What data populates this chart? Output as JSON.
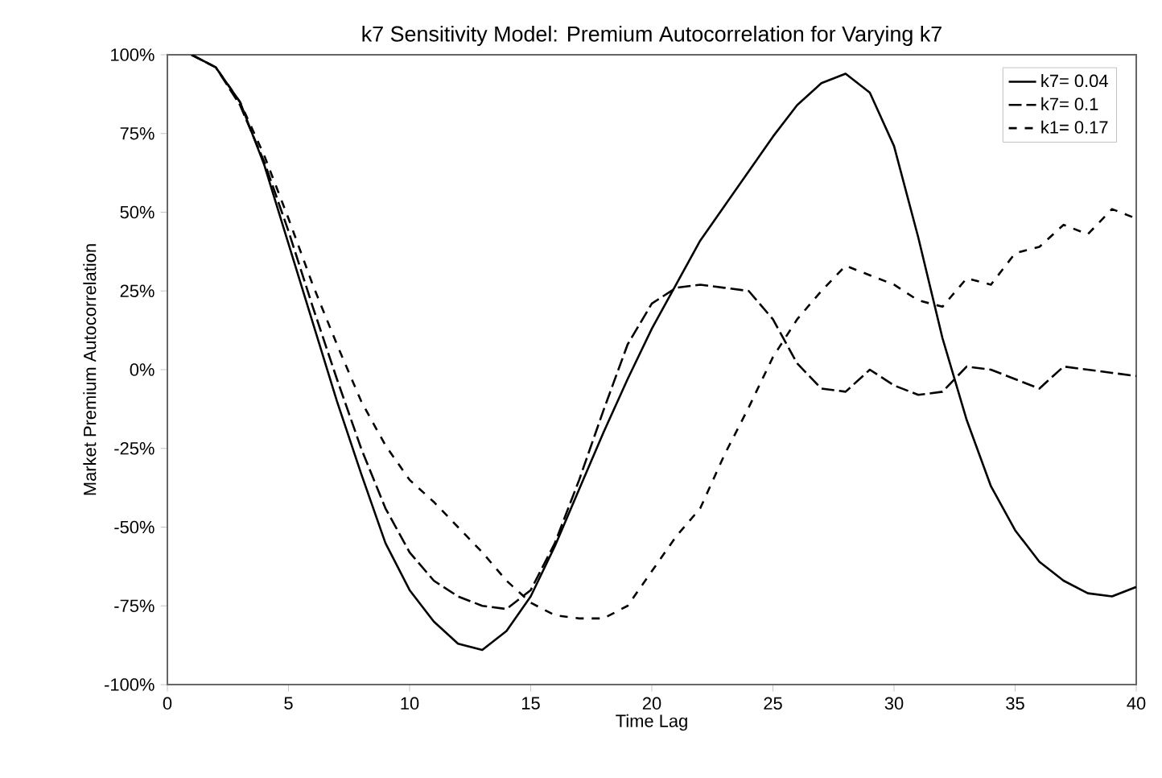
{
  "chart_data": {
    "type": "line",
    "title": "k7 Sensitivity Model: Premium Autocorrelation for Varying k7",
    "xlabel": "Time Lag",
    "ylabel": "Market Premium Autocorrelation",
    "x": [
      1,
      2,
      3,
      4,
      5,
      6,
      7,
      8,
      9,
      10,
      11,
      12,
      13,
      14,
      15,
      16,
      17,
      18,
      19,
      20,
      21,
      22,
      23,
      24,
      25,
      26,
      27,
      28,
      29,
      30,
      31,
      32,
      33,
      34,
      35,
      36,
      37,
      38,
      39,
      40
    ],
    "series": [
      {
        "name": "k7= 0.04",
        "color": "#000000",
        "line_style": "solid",
        "values": [
          100,
          96,
          85,
          65,
          40,
          15,
          -10,
          -33,
          -55,
          -70,
          -80,
          -87,
          -89,
          -83,
          -72,
          -56,
          -38,
          -20,
          -3,
          13,
          27,
          41,
          52,
          63,
          74,
          84,
          91,
          94,
          88,
          71,
          42,
          10,
          -16,
          -37,
          -51,
          -61,
          -67,
          -71,
          -72,
          -69
        ]
      },
      {
        "name": "k7= 0.1",
        "color": "#000000",
        "line_style": "dashdot",
        "values": [
          100,
          96,
          84,
          66,
          44,
          20,
          -3,
          -25,
          -44,
          -58,
          -67,
          -72,
          -75,
          -76,
          -70,
          -55,
          -35,
          -13,
          8,
          21,
          26,
          27,
          26,
          25,
          16,
          2,
          -6,
          -7,
          0,
          -5,
          -8,
          -7,
          1,
          0,
          -3,
          -6,
          1,
          0,
          -1,
          -2
        ]
      },
      {
        "name": "k1= 0.17",
        "color": "#000000",
        "line_style": "dashed",
        "values": [
          100,
          96,
          85,
          68,
          48,
          27,
          8,
          -10,
          -24,
          -35,
          -42,
          -50,
          -58,
          -67,
          -74,
          -78,
          -79,
          -79,
          -75,
          -64,
          -53,
          -44,
          -27,
          -12,
          4,
          16,
          25,
          33,
          30,
          27,
          22,
          20,
          29,
          27,
          37,
          39,
          46,
          43,
          51,
          48
        ]
      }
    ],
    "xlim": [
      0,
      40
    ],
    "xticks": [
      0,
      5,
      10,
      15,
      20,
      25,
      30,
      35,
      40
    ],
    "ylim": [
      -100,
      100
    ],
    "yticks": [
      {
        "value": -100,
        "label": "-100%"
      },
      {
        "value": -75,
        "label": "-75%"
      },
      {
        "value": -50,
        "label": "-50%"
      },
      {
        "value": -25,
        "label": "-25%"
      },
      {
        "value": 0,
        "label": "0%"
      },
      {
        "value": 25,
        "label": "25%"
      },
      {
        "value": 50,
        "label": "50%"
      },
      {
        "value": 75,
        "label": "75%"
      },
      {
        "value": 100,
        "label": "100%"
      }
    ],
    "grid": false,
    "legend": "top right",
    "marker": "none"
  }
}
